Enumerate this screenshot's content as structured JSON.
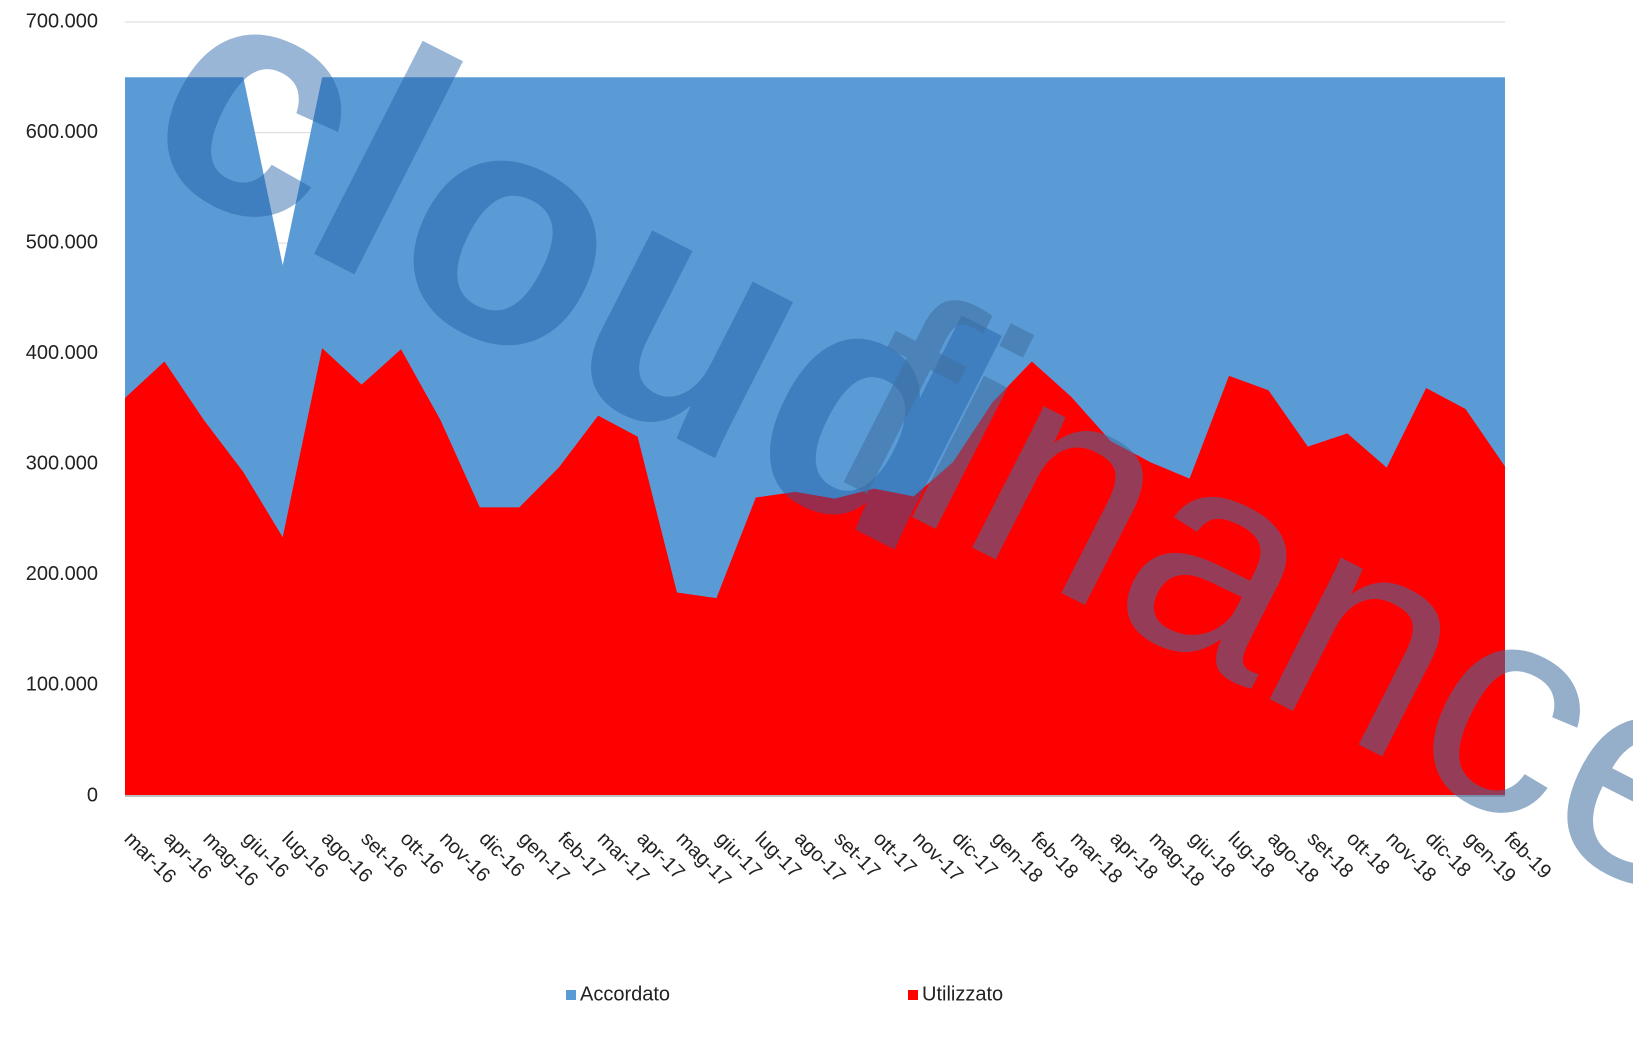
{
  "chart_data": {
    "type": "area",
    "categories": [
      "mar-16",
      "apr-16",
      "mag-16",
      "giu-16",
      "lug-16",
      "ago-16",
      "set-16",
      "ott-16",
      "nov-16",
      "dic-16",
      "gen-17",
      "feb-17",
      "mar-17",
      "apr-17",
      "mag-17",
      "giu-17",
      "lug-17",
      "ago-17",
      "set-17",
      "ott-17",
      "nov-17",
      "dic-17",
      "gen-18",
      "feb-18",
      "mar-18",
      "apr-18",
      "mag-18",
      "giu-18",
      "lug-18",
      "ago-18",
      "set-18",
      "ott-18",
      "nov-18",
      "dic-18",
      "gen-19",
      "feb-19"
    ],
    "series": [
      {
        "name": "Accordato",
        "color": "#5b9bd5",
        "values": [
          650000,
          650000,
          650000,
          650000,
          480000,
          650000,
          650000,
          650000,
          650000,
          650000,
          650000,
          650000,
          650000,
          650000,
          650000,
          650000,
          650000,
          650000,
          650000,
          650000,
          650000,
          650000,
          650000,
          650000,
          650000,
          650000,
          650000,
          650000,
          650000,
          650000,
          650000,
          650000,
          650000,
          650000,
          650000,
          650000
        ]
      },
      {
        "name": "Utilizzato",
        "color": "#ff0000",
        "values": [
          360000,
          393000,
          340000,
          293000,
          234000,
          405000,
          372000,
          404000,
          340000,
          261000,
          261000,
          297000,
          344000,
          325000,
          184000,
          179000,
          270000,
          275000,
          269000,
          278000,
          271000,
          302000,
          356000,
          393000,
          361000,
          321000,
          302000,
          287000,
          380000,
          367000,
          316000,
          328000,
          297000,
          369000,
          350000,
          298000
        ]
      }
    ],
    "ylim": [
      0,
      700000
    ],
    "yticks": [
      0,
      {
        "value": 100000,
        "label": "100.000"
      },
      {
        "value": 200000,
        "label": "200.000"
      },
      {
        "value": 300000,
        "label": "300.000"
      },
      {
        "value": 400000,
        "label": "400.000"
      },
      {
        "value": 500000,
        "label": "500.000"
      },
      {
        "value": 600000,
        "label": "600.000"
      },
      {
        "value": 700000,
        "label": "700.000"
      }
    ],
    "grid": true,
    "legend": "bottom",
    "watermark": [
      "cloud",
      "finance"
    ]
  }
}
